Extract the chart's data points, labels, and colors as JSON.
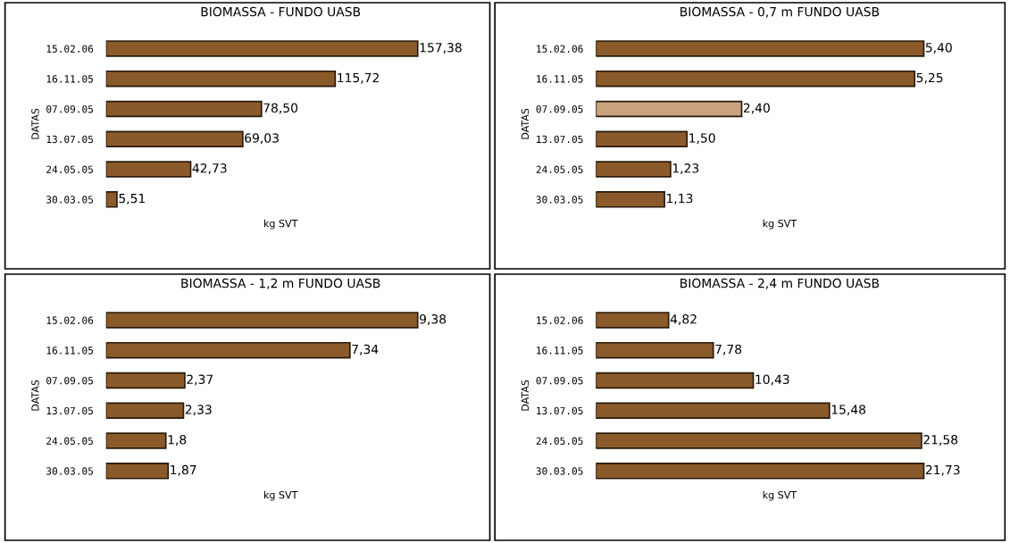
{
  "chart_data": [
    {
      "type": "bar",
      "orientation": "horizontal",
      "title": "BIOMASSA - FUNDO UASB",
      "xlabel": "kg SVT",
      "ylabel": "DATAS",
      "categories": [
        "15.02.06",
        "16.11.05",
        "07.09.05",
        "13.07.05",
        "24.05.05",
        "30.03.05"
      ],
      "values": [
        157.38,
        115.72,
        78.5,
        69.03,
        42.73,
        5.51
      ],
      "value_labels": [
        "157,38",
        "115,72",
        "78,50",
        "69,03",
        "42,73",
        "5,51"
      ],
      "color": "#8b5a2b",
      "tick_labels": "y",
      "grid": false
    },
    {
      "type": "bar",
      "orientation": "horizontal",
      "title": "BIOMASSA - 0,7 m FUNDO UASB",
      "xlabel": "kg SVT",
      "ylabel": "DATAS",
      "categories": [
        "15.02.06",
        "16.11.05",
        "07.09.05",
        "13.07.05",
        "24.05.05",
        "30.03.05"
      ],
      "values": [
        5.4,
        5.25,
        2.4,
        1.5,
        1.23,
        1.13
      ],
      "value_labels": [
        "5,40",
        "5,25",
        "2,40",
        "1,50",
        "1,23",
        "1,13"
      ],
      "colors": [
        "#8b5a2b",
        "#8b5a2b",
        "#c9a27e",
        "#8b5a2b",
        "#8b5a2b",
        "#8b5a2b"
      ],
      "tick_labels": "y",
      "grid": false
    },
    {
      "type": "bar",
      "orientation": "horizontal",
      "title": "BIOMASSA - 1,2 m FUNDO UASB",
      "xlabel": "kg SVT",
      "ylabel": "DATAS",
      "categories": [
        "15.02.06",
        "16.11.05",
        "07.09.05",
        "13.07.05",
        "24.05.05",
        "30.03.05"
      ],
      "values": [
        9.38,
        7.34,
        2.37,
        2.33,
        1.8,
        1.87
      ],
      "value_labels": [
        "9,38",
        "7,34",
        "2,37",
        "2,33",
        "1,8",
        "1,87"
      ],
      "color": "#8b5a2b",
      "tick_labels": "y",
      "grid": false
    },
    {
      "type": "bar",
      "orientation": "horizontal",
      "title": "BIOMASSA - 2,4 m FUNDO UASB",
      "xlabel": "kg SVT",
      "ylabel": "DATAS",
      "categories": [
        "15.02.06",
        "16.11.05",
        "07.09.05",
        "13.07.05",
        "24.05.05",
        "30.03.05"
      ],
      "values": [
        4.82,
        7.78,
        10.43,
        15.48,
        21.58,
        21.73
      ],
      "value_labels": [
        "4,82",
        "7,78",
        "10,43",
        "15,48",
        "21,58",
        "21,73"
      ],
      "color": "#8b5a2b",
      "tick_labels": "y",
      "grid": false
    }
  ]
}
